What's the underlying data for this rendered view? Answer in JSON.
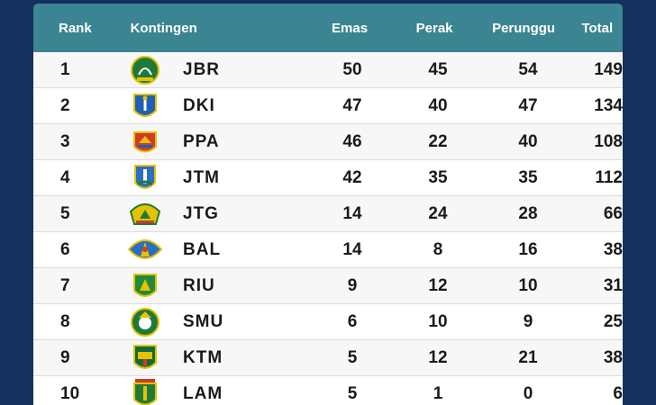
{
  "header": {
    "rank": "Rank",
    "kontingen": "Kontingen",
    "emas": "Emas",
    "perak": "Perak",
    "perunggu": "Perunggu",
    "total": "Total"
  },
  "rows": [
    {
      "rank": "1",
      "code": "JBR",
      "emas": "50",
      "perak": "45",
      "perunggu": "54",
      "total": "149",
      "logo": "west-java-emblem-icon"
    },
    {
      "rank": "2",
      "code": "DKI",
      "emas": "47",
      "perak": "40",
      "perunggu": "47",
      "total": "134",
      "logo": "jakarta-emblem-icon"
    },
    {
      "rank": "3",
      "code": "PPA",
      "emas": "46",
      "perak": "22",
      "perunggu": "40",
      "total": "108",
      "logo": "papua-emblem-icon"
    },
    {
      "rank": "4",
      "code": "JTM",
      "emas": "42",
      "perak": "35",
      "perunggu": "35",
      "total": "112",
      "logo": "east-java-emblem-icon"
    },
    {
      "rank": "5",
      "code": "JTG",
      "emas": "14",
      "perak": "24",
      "perunggu": "28",
      "total": "66",
      "logo": "central-java-emblem-icon"
    },
    {
      "rank": "6",
      "code": "BAL",
      "emas": "14",
      "perak": "8",
      "perunggu": "16",
      "total": "38",
      "logo": "bali-emblem-icon"
    },
    {
      "rank": "7",
      "code": "RIU",
      "emas": "9",
      "perak": "12",
      "perunggu": "10",
      "total": "31",
      "logo": "riau-emblem-icon"
    },
    {
      "rank": "8",
      "code": "SMU",
      "emas": "6",
      "perak": "10",
      "perunggu": "9",
      "total": "25",
      "logo": "north-sumatra-emblem-icon"
    },
    {
      "rank": "9",
      "code": "KTM",
      "emas": "5",
      "perak": "12",
      "perunggu": "21",
      "total": "38",
      "logo": "east-kalimantan-emblem-icon"
    },
    {
      "rank": "10",
      "code": "LAM",
      "emas": "5",
      "perak": "1",
      "perunggu": "0",
      "total": "6",
      "logo": "lampung-emblem-icon"
    }
  ],
  "colors": {
    "background": "#14305e",
    "header": "#3b8592"
  }
}
